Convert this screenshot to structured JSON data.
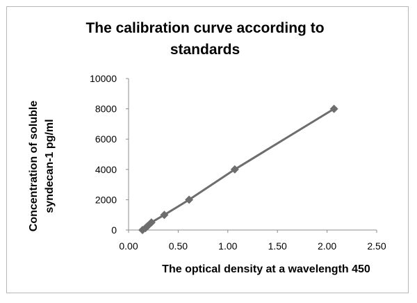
{
  "chart_data": {
    "type": "scatter",
    "title_lines": [
      "The calibration curve according to",
      "standards"
    ],
    "xlabel": "The optical density at a wavelength 450",
    "ylabel_lines": [
      "Concentration of soluble",
      "syndecan-1 pg/ml"
    ],
    "xlim": [
      0,
      2.5
    ],
    "ylim": [
      0,
      10000
    ],
    "x_ticks": [
      "0.00",
      "0.50",
      "1.00",
      "1.50",
      "2.00",
      "2.50"
    ],
    "y_ticks": [
      "0",
      "2000",
      "4000",
      "6000",
      "8000",
      "10000"
    ],
    "grid": false,
    "legend": "none",
    "marker": "diamond",
    "series_color": "#6d6d6d",
    "series": [
      {
        "points": [
          {
            "x": 0.14,
            "y": 0
          },
          {
            "x": 0.17,
            "y": 125
          },
          {
            "x": 0.19,
            "y": 250
          },
          {
            "x": 0.23,
            "y": 500
          },
          {
            "x": 0.36,
            "y": 1000
          },
          {
            "x": 0.61,
            "y": 2000
          },
          {
            "x": 1.07,
            "y": 4000
          },
          {
            "x": 2.07,
            "y": 8000
          }
        ]
      }
    ]
  }
}
